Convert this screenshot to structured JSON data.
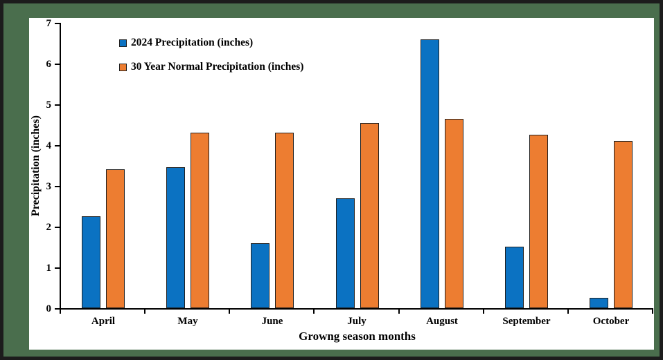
{
  "frame": {
    "outer_border_color": "#1c1c1c",
    "frame_color": "#4a6e4d",
    "plot_background": "#ffffff"
  },
  "chart_data": {
    "type": "bar",
    "title": "",
    "xlabel": "Growng season months",
    "ylabel": "Precipitation (inches)",
    "categories": [
      "April",
      "May",
      "June",
      "July",
      "August",
      "September",
      "October"
    ],
    "series": [
      {
        "name": "2024 Precipitation (inches)",
        "color": "#0b72c2",
        "values": [
          2.25,
          3.45,
          1.6,
          2.7,
          6.6,
          1.5,
          0.25
        ]
      },
      {
        "name": "30 Year Normal Precipitation (inches)",
        "color": "#ed7d31",
        "values": [
          3.4,
          4.3,
          4.3,
          4.55,
          4.65,
          4.25,
          4.1
        ]
      }
    ],
    "ylim": [
      0,
      7
    ],
    "yticks": [
      0,
      1,
      2,
      3,
      4,
      5,
      6,
      7
    ],
    "grid": false,
    "legend_position": "top-left-inside"
  }
}
